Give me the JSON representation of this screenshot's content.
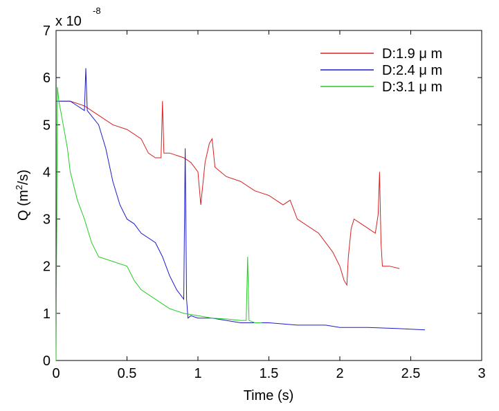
{
  "chart_data": {
    "type": "line",
    "title": "",
    "xlabel": "Time (s)",
    "ylabel": "Q (m",
    "ylabel_sup": "2",
    "ylabel_end": "/s)",
    "y_multiplier_base": "x 10",
    "y_multiplier_exp": "-8",
    "xlim": [
      0,
      3
    ],
    "ylim": [
      0,
      7
    ],
    "xticks": [
      "0",
      "0.5",
      "1",
      "1.5",
      "2",
      "2.5",
      "3"
    ],
    "yticks": [
      "0",
      "1",
      "2",
      "3",
      "4",
      "5",
      "6",
      "7"
    ],
    "grid": false,
    "legend_position": "top-right",
    "series": [
      {
        "name": "D:1.9 μ m",
        "color": "#d62020",
        "x": [
          0.02,
          0.1,
          0.2,
          0.3,
          0.4,
          0.5,
          0.6,
          0.65,
          0.7,
          0.74,
          0.75,
          0.76,
          0.8,
          0.9,
          0.95,
          1.0,
          1.02,
          1.05,
          1.08,
          1.1,
          1.12,
          1.2,
          1.3,
          1.4,
          1.5,
          1.55,
          1.6,
          1.65,
          1.7,
          1.8,
          1.85,
          1.9,
          1.95,
          2.0,
          2.03,
          2.05,
          2.06,
          2.08,
          2.1,
          2.15,
          2.2,
          2.25,
          2.27,
          2.28,
          2.29,
          2.3,
          2.35,
          2.42
        ],
        "y": [
          5.5,
          5.5,
          5.4,
          5.2,
          5.0,
          4.9,
          4.7,
          4.4,
          4.3,
          4.3,
          5.5,
          4.4,
          4.4,
          4.3,
          4.2,
          4.0,
          3.3,
          4.2,
          4.6,
          4.7,
          4.1,
          3.9,
          3.8,
          3.6,
          3.5,
          3.4,
          3.3,
          3.4,
          3.0,
          2.8,
          2.7,
          2.5,
          2.3,
          2.0,
          1.7,
          1.6,
          2.2,
          2.8,
          3.0,
          2.9,
          2.8,
          2.7,
          3.1,
          4.0,
          2.5,
          2.0,
          2.0,
          1.95
        ]
      },
      {
        "name": "D:2.4 μ m",
        "color": "#1a1acc",
        "x": [
          0.0,
          0.1,
          0.15,
          0.2,
          0.21,
          0.22,
          0.3,
          0.35,
          0.4,
          0.45,
          0.5,
          0.55,
          0.6,
          0.7,
          0.75,
          0.8,
          0.85,
          0.9,
          0.91,
          0.92,
          0.93,
          0.95,
          1.0,
          1.1,
          1.2,
          1.3,
          1.5,
          1.7,
          1.9,
          2.0,
          2.2,
          2.4,
          2.6
        ],
        "y": [
          5.5,
          5.5,
          5.4,
          5.3,
          6.2,
          5.3,
          5.0,
          4.5,
          3.8,
          3.3,
          3.0,
          2.9,
          2.7,
          2.5,
          2.2,
          1.8,
          1.5,
          1.3,
          4.5,
          1.3,
          0.9,
          0.95,
          0.9,
          0.9,
          0.85,
          0.8,
          0.8,
          0.75,
          0.75,
          0.7,
          0.7,
          0.68,
          0.65
        ]
      },
      {
        "name": "D:3.1 μ m",
        "color": "#22cc22",
        "x": [
          0.0,
          0.01,
          0.02,
          0.05,
          0.08,
          0.1,
          0.15,
          0.2,
          0.25,
          0.3,
          0.4,
          0.5,
          0.55,
          0.6,
          0.7,
          0.8,
          0.9,
          1.0,
          1.1,
          1.2,
          1.3,
          1.34,
          1.35,
          1.36,
          1.4,
          1.45
        ],
        "y": [
          0.0,
          5.8,
          5.5,
          5.0,
          4.5,
          4.0,
          3.4,
          3.0,
          2.5,
          2.2,
          2.1,
          2.0,
          1.7,
          1.5,
          1.3,
          1.1,
          1.0,
          0.95,
          0.9,
          0.88,
          0.85,
          0.85,
          2.2,
          0.85,
          0.8,
          0.8
        ]
      }
    ]
  }
}
